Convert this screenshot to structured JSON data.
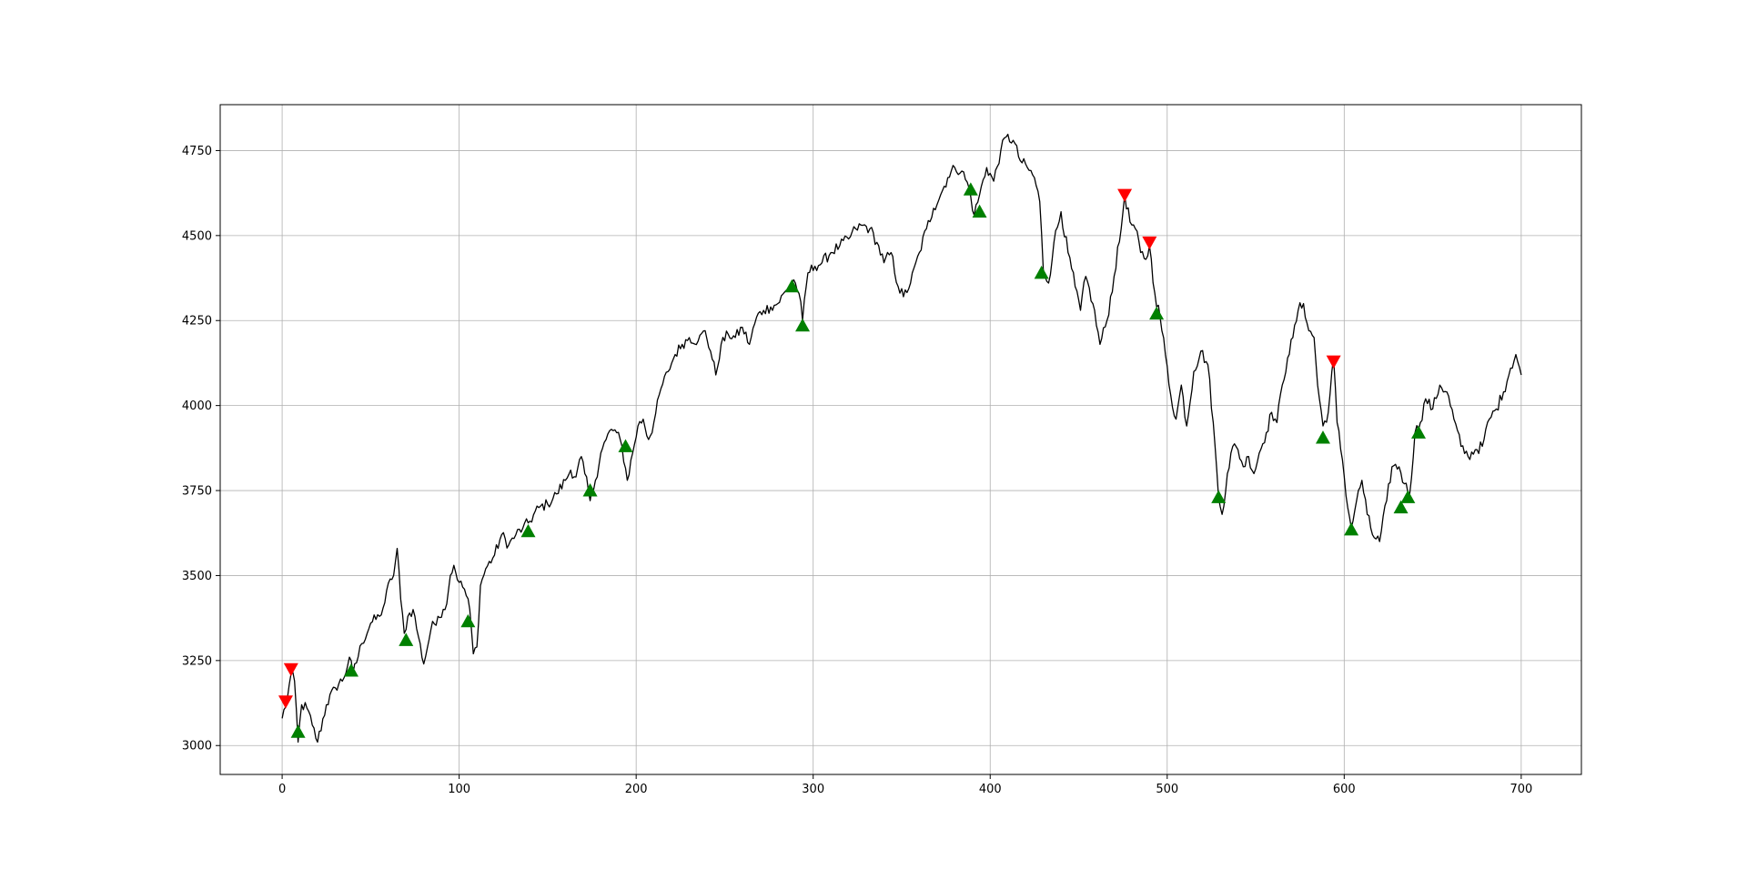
{
  "chart_data": {
    "type": "line",
    "title": "",
    "xlabel": "",
    "ylabel": "",
    "xlim": [
      -35,
      734
    ],
    "ylim": [
      2915,
      4885
    ],
    "xticks": [
      0,
      100,
      200,
      300,
      400,
      500,
      600,
      700
    ],
    "yticks": [
      3000,
      3250,
      3500,
      3750,
      4000,
      4250,
      4500,
      4750
    ],
    "grid": true,
    "legend": "none",
    "colors": {
      "line": "#000000",
      "buy": "#008000",
      "sell": "#ff0000",
      "grid": "#b0b0b0"
    },
    "anchors": [
      [
        0,
        3080
      ],
      [
        3,
        3140
      ],
      [
        5,
        3210
      ],
      [
        7,
        3190
      ],
      [
        9,
        3010
      ],
      [
        11,
        3120
      ],
      [
        14,
        3110
      ],
      [
        17,
        3060
      ],
      [
        20,
        3010
      ],
      [
        25,
        3120
      ],
      [
        30,
        3170
      ],
      [
        35,
        3200
      ],
      [
        38,
        3260
      ],
      [
        40,
        3210
      ],
      [
        45,
        3300
      ],
      [
        50,
        3360
      ],
      [
        55,
        3380
      ],
      [
        58,
        3420
      ],
      [
        61,
        3490
      ],
      [
        63,
        3500
      ],
      [
        65,
        3580
      ],
      [
        67,
        3430
      ],
      [
        69,
        3330
      ],
      [
        71,
        3380
      ],
      [
        74,
        3400
      ],
      [
        77,
        3320
      ],
      [
        80,
        3240
      ],
      [
        84,
        3340
      ],
      [
        88,
        3380
      ],
      [
        92,
        3400
      ],
      [
        95,
        3500
      ],
      [
        97,
        3530
      ],
      [
        100,
        3480
      ],
      [
        103,
        3460
      ],
      [
        106,
        3400
      ],
      [
        108,
        3270
      ],
      [
        110,
        3290
      ],
      [
        112,
        3470
      ],
      [
        115,
        3520
      ],
      [
        120,
        3560
      ],
      [
        124,
        3620
      ],
      [
        128,
        3590
      ],
      [
        132,
        3620
      ],
      [
        136,
        3640
      ],
      [
        140,
        3660
      ],
      [
        145,
        3700
      ],
      [
        150,
        3710
      ],
      [
        155,
        3740
      ],
      [
        160,
        3780
      ],
      [
        163,
        3810
      ],
      [
        166,
        3790
      ],
      [
        169,
        3850
      ],
      [
        171,
        3800
      ],
      [
        174,
        3720
      ],
      [
        177,
        3780
      ],
      [
        180,
        3860
      ],
      [
        183,
        3900
      ],
      [
        186,
        3930
      ],
      [
        189,
        3920
      ],
      [
        192,
        3880
      ],
      [
        195,
        3780
      ],
      [
        198,
        3860
      ],
      [
        201,
        3940
      ],
      [
        204,
        3960
      ],
      [
        207,
        3900
      ],
      [
        210,
        3950
      ],
      [
        214,
        4050
      ],
      [
        218,
        4100
      ],
      [
        222,
        4150
      ],
      [
        226,
        4180
      ],
      [
        230,
        4200
      ],
      [
        235,
        4190
      ],
      [
        239,
        4220
      ],
      [
        242,
        4160
      ],
      [
        245,
        4090
      ],
      [
        248,
        4180
      ],
      [
        252,
        4210
      ],
      [
        256,
        4200
      ],
      [
        260,
        4230
      ],
      [
        264,
        4180
      ],
      [
        268,
        4260
      ],
      [
        272,
        4280
      ],
      [
        276,
        4290
      ],
      [
        280,
        4300
      ],
      [
        285,
        4340
      ],
      [
        289,
        4370
      ],
      [
        292,
        4330
      ],
      [
        294,
        4250
      ],
      [
        297,
        4390
      ],
      [
        301,
        4410
      ],
      [
        305,
        4420
      ],
      [
        310,
        4450
      ],
      [
        315,
        4470
      ],
      [
        320,
        4490
      ],
      [
        324,
        4520
      ],
      [
        328,
        4530
      ],
      [
        332,
        4520
      ],
      [
        336,
        4480
      ],
      [
        340,
        4420
      ],
      [
        344,
        4450
      ],
      [
        348,
        4350
      ],
      [
        351,
        4320
      ],
      [
        355,
        4360
      ],
      [
        360,
        4450
      ],
      [
        364,
        4520
      ],
      [
        368,
        4580
      ],
      [
        372,
        4620
      ],
      [
        376,
        4670
      ],
      [
        380,
        4700
      ],
      [
        384,
        4690
      ],
      [
        388,
        4640
      ],
      [
        391,
        4560
      ],
      [
        394,
        4620
      ],
      [
        398,
        4700
      ],
      [
        402,
        4660
      ],
      [
        406,
        4750
      ],
      [
        409,
        4790
      ],
      [
        413,
        4780
      ],
      [
        417,
        4720
      ],
      [
        421,
        4700
      ],
      [
        425,
        4670
      ],
      [
        428,
        4600
      ],
      [
        430,
        4400
      ],
      [
        433,
        4360
      ],
      [
        436,
        4480
      ],
      [
        440,
        4570
      ],
      [
        444,
        4450
      ],
      [
        448,
        4350
      ],
      [
        451,
        4280
      ],
      [
        454,
        4380
      ],
      [
        458,
        4300
      ],
      [
        462,
        4180
      ],
      [
        466,
        4250
      ],
      [
        470,
        4380
      ],
      [
        474,
        4520
      ],
      [
        476,
        4620
      ],
      [
        479,
        4540
      ],
      [
        482,
        4520
      ],
      [
        485,
        4450
      ],
      [
        488,
        4430
      ],
      [
        490,
        4470
      ],
      [
        493,
        4330
      ],
      [
        496,
        4260
      ],
      [
        499,
        4150
      ],
      [
        502,
        4030
      ],
      [
        505,
        3960
      ],
      [
        508,
        4060
      ],
      [
        511,
        3940
      ],
      [
        515,
        4100
      ],
      [
        519,
        4160
      ],
      [
        523,
        4120
      ],
      [
        526,
        3950
      ],
      [
        529,
        3730
      ],
      [
        531,
        3680
      ],
      [
        534,
        3800
      ],
      [
        537,
        3880
      ],
      [
        540,
        3870
      ],
      [
        543,
        3820
      ],
      [
        546,
        3850
      ],
      [
        549,
        3800
      ],
      [
        552,
        3860
      ],
      [
        556,
        3920
      ],
      [
        559,
        3980
      ],
      [
        562,
        3950
      ],
      [
        565,
        4060
      ],
      [
        568,
        4140
      ],
      [
        571,
        4200
      ],
      [
        574,
        4280
      ],
      [
        577,
        4300
      ],
      [
        580,
        4220
      ],
      [
        583,
        4200
      ],
      [
        585,
        4060
      ],
      [
        588,
        3940
      ],
      [
        591,
        3980
      ],
      [
        594,
        4140
      ],
      [
        596,
        3950
      ],
      [
        599,
        3840
      ],
      [
        602,
        3700
      ],
      [
        604,
        3640
      ],
      [
        607,
        3720
      ],
      [
        610,
        3780
      ],
      [
        613,
        3680
      ],
      [
        616,
        3620
      ],
      [
        620,
        3600
      ],
      [
        624,
        3720
      ],
      [
        627,
        3820
      ],
      [
        631,
        3820
      ],
      [
        634,
        3770
      ],
      [
        637,
        3740
      ],
      [
        640,
        3920
      ],
      [
        643,
        3950
      ],
      [
        646,
        4020
      ],
      [
        650,
        3990
      ],
      [
        654,
        4060
      ],
      [
        658,
        4040
      ],
      [
        662,
        3960
      ],
      [
        666,
        3880
      ],
      [
        670,
        3850
      ],
      [
        674,
        3870
      ],
      [
        678,
        3880
      ],
      [
        682,
        3960
      ],
      [
        686,
        3990
      ],
      [
        690,
        4040
      ],
      [
        694,
        4110
      ],
      [
        697,
        4150
      ],
      [
        700,
        4090
      ]
    ],
    "buy_signals": [
      [
        9,
        3040
      ],
      [
        39,
        3220
      ],
      [
        70,
        3310
      ],
      [
        105,
        3365
      ],
      [
        139,
        3630
      ],
      [
        174,
        3750
      ],
      [
        194,
        3880
      ],
      [
        288,
        4350
      ],
      [
        294,
        4235
      ],
      [
        389,
        4635
      ],
      [
        394,
        4570
      ],
      [
        429,
        4390
      ],
      [
        494,
        4270
      ],
      [
        529,
        3730
      ],
      [
        588,
        3905
      ],
      [
        604,
        3635
      ],
      [
        632,
        3700
      ],
      [
        636,
        3730
      ],
      [
        642,
        3920
      ]
    ],
    "sell_signals": [
      [
        2,
        3130
      ],
      [
        5,
        3225
      ],
      [
        476,
        4620
      ],
      [
        490,
        4480
      ],
      [
        594,
        4130
      ]
    ]
  }
}
